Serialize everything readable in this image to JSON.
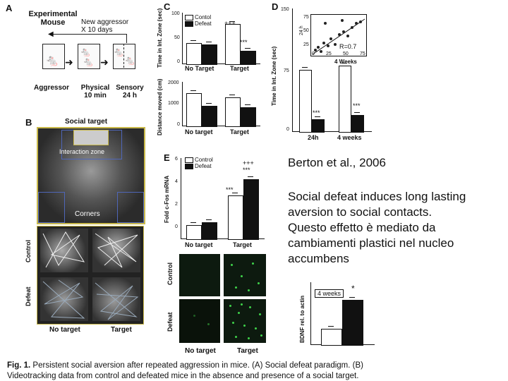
{
  "panelA": {
    "letter": "A",
    "title_line1": "Experimental",
    "title_line2": "Mouse",
    "arrow_line1": "New aggressor",
    "arrow_line2": "X 10 days",
    "label_aggressor": "Aggressor",
    "label_physical": "Physical",
    "label_physical_time": "10 min",
    "label_sensory": "Sensory",
    "label_sensory_time": "24 h"
  },
  "panelB": {
    "letter": "B",
    "social_target": "Social target",
    "interaction_zone": "Interaction zone",
    "corners": "Corners",
    "row_control": "Control",
    "row_defeat": "Defeat",
    "col_no_target": "No target",
    "col_target": "Target"
  },
  "panelC": {
    "letter": "C",
    "ylabel_top": "Time in Int. Zone (sec)",
    "ytick_top": [
      "100",
      "50",
      "0"
    ],
    "legend_control": "Contol",
    "legend_defeat": "Defeat",
    "sig_plus": "+++",
    "sig_star": "***",
    "x_notarget": "No Target",
    "x_target": "Target",
    "ylabel_bottom": "Distance moved (cm)",
    "ytick_bottom": [
      "2000",
      "1000",
      "0"
    ],
    "x2_notarget": "No target",
    "x2_target": "Target"
  },
  "panelD": {
    "letter": "D",
    "ylabel": "Time in Int. Zone (sec)",
    "ytick": [
      "150",
      "75",
      "0"
    ],
    "inset_ylabel": "24 h",
    "inset_xlabel": "4 Weeks",
    "inset_r": "R=0.7",
    "inset_xticks": [
      "0",
      "25",
      "50",
      "75"
    ],
    "inset_yticks": [
      "75",
      "50",
      "25"
    ],
    "sig_star_a": "***",
    "sig_star_b": "***",
    "x_24h": "24h",
    "x_4w": "4 weeks"
  },
  "panelE": {
    "letter": "E",
    "ylabel": "Fold c-Fos mRNA",
    "ytick": [
      "6",
      "4",
      "2",
      "0"
    ],
    "legend_control": "Control",
    "legend_defeat": "Defeat",
    "sig_plus": "+++",
    "sig_star_top": "***",
    "sig_star_left": "***",
    "x_notarget": "No target",
    "x_target": "Target",
    "row_control": "Control",
    "row_defeat": "Defeat",
    "col_no_target": "No target",
    "col_target": "Target"
  },
  "panelBDNF": {
    "ylabel": "BDNF rel. to actin",
    "weeks": "4 weeks",
    "sig": "*"
  },
  "right_text": {
    "citation": "Berton et al., 2006",
    "line1": "Social defeat induces long lasting",
    "line2": "aversion to social contacts.",
    "line3": "Questo effetto è mediato da",
    "line4": "cambiamenti plastici nel nucleo",
    "line5": "accumbens"
  },
  "caption": {
    "line1_bold": "Fig. 1.",
    "line1_rest": " Persistent social aversion after repeated aggression in mice. (A) Social defeat paradigm. (B)",
    "line2": "Videotracking data from control and defeated mice in the absence and presence of a social target."
  },
  "chart_data": [
    {
      "type": "bar",
      "title": "",
      "categories": [
        "No Target",
        "Target"
      ],
      "series": [
        {
          "name": "Contol",
          "values": [
            40,
            78
          ]
        },
        {
          "name": "Defeat",
          "values": [
            37,
            25
          ]
        }
      ],
      "ylabel": "Time in Int. Zone (sec)",
      "ylim": [
        0,
        100
      ]
    },
    {
      "type": "bar",
      "categories": [
        "No target",
        "Target"
      ],
      "series": [
        {
          "values": [
            1500,
            1300
          ]
        },
        {
          "values": [
            900,
            850
          ]
        }
      ],
      "ylabel": "Distance moved (cm)",
      "ylim": [
        0,
        2000
      ]
    },
    {
      "type": "bar",
      "categories": [
        "24h",
        "4 weeks"
      ],
      "series": [
        {
          "values": [
            75,
            80
          ]
        },
        {
          "values": [
            15,
            20
          ]
        }
      ],
      "ylabel": "Time in Int. Zone (sec)",
      "ylim": [
        0,
        150
      ]
    },
    {
      "type": "bar",
      "categories": [
        "No target",
        "Target"
      ],
      "series": [
        {
          "name": "Control",
          "values": [
            1.0,
            3.2
          ]
        },
        {
          "name": "Defeat",
          "values": [
            1.2,
            4.4
          ]
        }
      ],
      "ylabel": "Fold c-Fos mRNA",
      "ylim": [
        0,
        6
      ]
    },
    {
      "type": "bar",
      "categories": [
        "4 weeks"
      ],
      "series": [
        {
          "values": [
            1.0
          ]
        },
        {
          "values": [
            2.8
          ]
        }
      ],
      "ylabel": "BDNF rel. to actin"
    }
  ]
}
